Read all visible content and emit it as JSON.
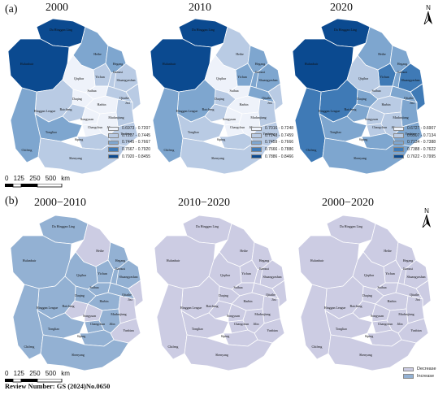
{
  "panels": {
    "a": {
      "letter": "(a)",
      "titles": [
        "2000",
        "2010",
        "2020"
      ],
      "legends": [
        [
          "0.6973 - 0.7207",
          "0.7207 - 0.7445",
          "0.7445 - 0.7667",
          "0.7667 - 0.7920",
          "0.7920 - 0.8455"
        ],
        [
          "0.7016 - 0.7248",
          "0.7248 - 0.7459",
          "0.7459 - 0.7666",
          "0.7666 - 0.7886",
          "0.7886 - 0.8466"
        ],
        [
          "0.6727 - 0.6907",
          "0.6907 - 0.7134",
          "0.7134 - 0.7388",
          "0.7388 - 0.7622",
          "0.7622 - 0.7995"
        ]
      ],
      "legend_colors": [
        "#eef2fa",
        "#b9cbe4",
        "#7ea6cf",
        "#3f7ab6",
        "#0b4a90"
      ]
    },
    "b": {
      "letter": "(b)",
      "titles": [
        "2000−2010",
        "2010−2020",
        "2000−2020"
      ],
      "legend": [
        "Decrease",
        "Increase"
      ],
      "legend_colors": [
        "#cccce3",
        "#93b1d3"
      ]
    }
  },
  "map_labels": [
    "Da Hinggan Ling",
    "Heihe",
    "Hulunbuir",
    "Qiqihar",
    "Shuangyashan",
    "Hegang",
    "Yichun",
    "Jiamusi",
    "Suihua",
    "Harbin",
    "Daqing",
    "Qitaihe",
    "Mudanjiang",
    "Jixi",
    "Baicheng",
    "Songyuan",
    "Hinggan League",
    "Tongliao",
    "Changchun",
    "Jilin",
    "Yanbian",
    "Siping",
    "Chifeng",
    "Liaoyuan",
    "Tieling",
    "Baishan",
    "Shenyang",
    "Tonghua",
    "Fuxin",
    "Fushun",
    "Chaoyang",
    "Benxi",
    "Jinzhou",
    "Anshan",
    "Dandong",
    "Huludao",
    "Yingkou",
    "Panjin",
    "Dalian",
    "Liaoyang",
    "Baishan"
  ],
  "scale": {
    "ticks": [
      "0",
      "125",
      "250",
      "500"
    ],
    "unit": "km"
  },
  "north_label": "N",
  "review": "Review Number: GS (2024)No.0650",
  "choropleth_2000": {
    "Da Hinggan Ling": 5,
    "Hulunbuir": 5,
    "Heihe": 3,
    "Qiqihar": 1,
    "Yichun": 2,
    "Hegang": 3,
    "Jiamusi": 2,
    "Shuangyashan": 2,
    "Suihua": 1,
    "Daqing": 1,
    "Harbin": 1,
    "Qitaihe": 2,
    "Jixi": 2,
    "Mudanjiang": 2,
    "Hinggan League": 2,
    "Baicheng": 2,
    "Songyuan": 1,
    "Changchun": 1,
    "Jilin": 1,
    "Yanbian": 2,
    "Tongliao": 3,
    "Chifeng": 3,
    "Siping": 2,
    "Liaoning": 2
  },
  "choropleth_2010": {
    "Da Hinggan Ling": 5,
    "Hulunbuir": 5,
    "Heihe": 2,
    "Qiqihar": 1,
    "Yichun": 3,
    "Hegang": 3,
    "Jiamusi": 3,
    "Shuangyashan": 3,
    "Suihua": 1,
    "Daqing": 2,
    "Harbin": 1,
    "Qitaihe": 3,
    "Jixi": 2,
    "Mudanjiang": 2,
    "Hinggan League": 3,
    "Baicheng": 2,
    "Songyuan": 1,
    "Changchun": 1,
    "Jilin": 1,
    "Yanbian": 2,
    "Tongliao": 2,
    "Chifeng": 3,
    "Siping": 2,
    "Liaoning": 2
  },
  "choropleth_2020": {
    "Da Hinggan Ling": 5,
    "Hulunbuir": 5,
    "Heihe": 3,
    "Qiqihar": 2,
    "Yichun": 4,
    "Hegang": 3,
    "Jiamusi": 3,
    "Shuangyashan": 4,
    "Suihua": 2,
    "Daqing": 3,
    "Harbin": 2,
    "Qitaihe": 3,
    "Jixi": 4,
    "Mudanjiang": 3,
    "Hinggan League": 4,
    "Baicheng": 3,
    "Songyuan": 2,
    "Changchun": 2,
    "Jilin": 2,
    "Yanbian": 3,
    "Tongliao": 3,
    "Chifeng": 4,
    "Siping": 3,
    "Liaoning": 3
  },
  "change_maps": {
    "2000-2010": {
      "Da Hinggan Ling": "Increase",
      "Hulunbuir": "Increase",
      "Heihe": "Decrease",
      "Qiqihar": "Increase",
      "Yichun": "Increase",
      "Hegang": "Increase",
      "Jiamusi": "Increase",
      "Shuangyashan": "Increase",
      "Suihua": "Increase",
      "Daqing": "Increase",
      "Harbin": "Increase",
      "Qitaihe": "Increase",
      "Jixi": "Decrease",
      "Mudanjiang": "Decrease",
      "Hinggan League": "Increase",
      "Baicheng": "Decrease",
      "Songyuan": "Decrease",
      "Changchun": "Increase",
      "Jilin": "Increase",
      "Yanbian": "Decrease",
      "Tongliao": "Increase",
      "Chifeng": "Increase",
      "Siping": "Increase",
      "Liaoning": "Increase"
    },
    "2010-2020": {
      "Da Hinggan Ling": "Decrease",
      "Hulunbuir": "Decrease",
      "Heihe": "Decrease",
      "Qiqihar": "Decrease",
      "Yichun": "Decrease",
      "Hegang": "Decrease",
      "Jiamusi": "Decrease",
      "Shuangyashan": "Decrease",
      "Suihua": "Decrease",
      "Daqing": "Decrease",
      "Harbin": "Decrease",
      "Qitaihe": "Decrease",
      "Jixi": "Decrease",
      "Mudanjiang": "Decrease",
      "Hinggan League": "Decrease",
      "Baicheng": "Decrease",
      "Songyuan": "Decrease",
      "Changchun": "Decrease",
      "Jilin": "Decrease",
      "Yanbian": "Decrease",
      "Tongliao": "Decrease",
      "Chifeng": "Decrease",
      "Siping": "Decrease",
      "Liaoning": "Decrease"
    },
    "2000-2020": {
      "Da Hinggan Ling": "Decrease",
      "Hulunbuir": "Decrease",
      "Heihe": "Decrease",
      "Qiqihar": "Decrease",
      "Yichun": "Decrease",
      "Hegang": "Decrease",
      "Jiamusi": "Decrease",
      "Shuangyashan": "Decrease",
      "Suihua": "Decrease",
      "Daqing": "Decrease",
      "Harbin": "Decrease",
      "Qitaihe": "Decrease",
      "Jixi": "Decrease",
      "Mudanjiang": "Decrease",
      "Hinggan League": "Decrease",
      "Baicheng": "Decrease",
      "Songyuan": "Decrease",
      "Changchun": "Decrease",
      "Jilin": "Decrease",
      "Yanbian": "Decrease",
      "Tongliao": "Decrease",
      "Chifeng": "Decrease",
      "Siping": "Decrease",
      "Liaoning": "Decrease"
    }
  }
}
